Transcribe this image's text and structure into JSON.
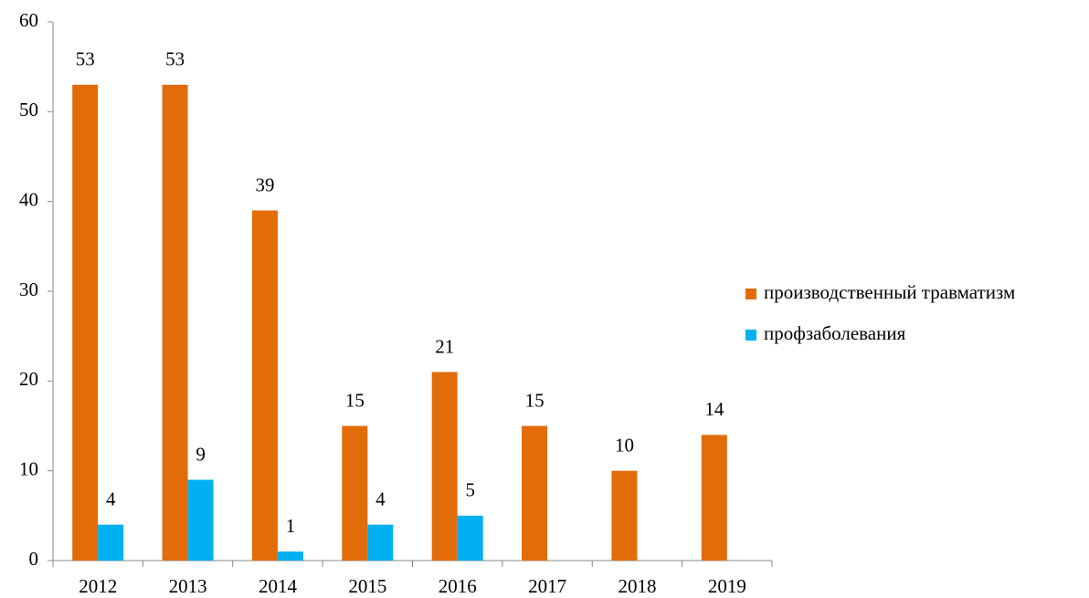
{
  "chart_data": {
    "type": "bar",
    "categories": [
      "2012",
      "2013",
      "2014",
      "2015",
      "2016",
      "2017",
      "2018",
      "2019"
    ],
    "series": [
      {
        "name": "производственный травматизм",
        "color": "#e36c0a",
        "values": [
          53,
          53,
          39,
          15,
          21,
          15,
          10,
          14
        ]
      },
      {
        "name": "профзаболевания",
        "color": "#00b0f0",
        "values": [
          4,
          9,
          1,
          4,
          5,
          null,
          null,
          null
        ]
      }
    ],
    "ylim": [
      0,
      60
    ],
    "yticks": [
      0,
      10,
      20,
      30,
      40,
      50,
      60
    ],
    "legend": "right"
  }
}
